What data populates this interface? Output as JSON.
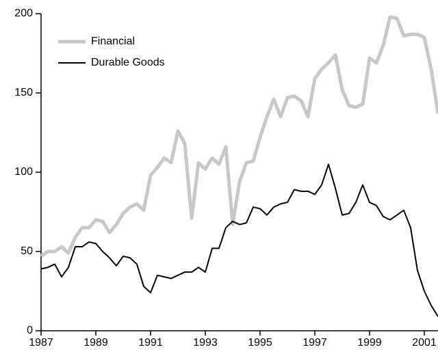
{
  "chart_data": {
    "type": "line",
    "x": [
      1987,
      1987.25,
      1987.5,
      1987.75,
      1988,
      1988.25,
      1988.5,
      1988.75,
      1989,
      1989.25,
      1989.5,
      1989.75,
      1990,
      1990.25,
      1990.5,
      1990.75,
      1991,
      1991.25,
      1991.5,
      1991.75,
      1992,
      1992.25,
      1992.5,
      1992.75,
      1993,
      1993.25,
      1993.5,
      1993.75,
      1994,
      1994.25,
      1994.5,
      1994.75,
      1995,
      1995.25,
      1995.5,
      1995.75,
      1996,
      1996.25,
      1996.5,
      1996.75,
      1997,
      1997.25,
      1997.5,
      1997.75,
      1998,
      1998.25,
      1998.5,
      1998.75,
      1999,
      1999.25,
      1999.5,
      1999.75,
      2000,
      2000.25,
      2000.5,
      2000.75,
      2001,
      2001.25,
      2001.5
    ],
    "series": [
      {
        "name": "Financial",
        "color": "#c8c8c8",
        "values": [
          47,
          50,
          50,
          53,
          49,
          59,
          65,
          65,
          70,
          69,
          62,
          67,
          74,
          78,
          80,
          76,
          98,
          103,
          109,
          106,
          126,
          118,
          71,
          106,
          102,
          109,
          105,
          116,
          67,
          94,
          106,
          107,
          122,
          135,
          146,
          135,
          147,
          148,
          145,
          135,
          159,
          165,
          169,
          174,
          152,
          142,
          141,
          143,
          172,
          169,
          180,
          198,
          197,
          186,
          187,
          187,
          185,
          165,
          137
        ]
      },
      {
        "name": "Durable Goods",
        "color": "#000000",
        "values": [
          39,
          40,
          42,
          34,
          40,
          53,
          53,
          56,
          55,
          50,
          46,
          41,
          47,
          46,
          42,
          28,
          24,
          35,
          34,
          33,
          35,
          37,
          37,
          40,
          37,
          52,
          52,
          65,
          69,
          67,
          68,
          78,
          77,
          73,
          78,
          80,
          81,
          89,
          88,
          88,
          86,
          92,
          105,
          90,
          73,
          74,
          81,
          92,
          81,
          79,
          72,
          70,
          73,
          76,
          65,
          38,
          25,
          16,
          9
        ]
      }
    ],
    "xlim": [
      1987,
      2001.5
    ],
    "xticks": [
      1987,
      1989,
      1991,
      1993,
      1995,
      1997,
      1999,
      2001
    ],
    "ylim": [
      0,
      200
    ],
    "yticks": [
      0,
      50,
      100,
      150,
      200
    ],
    "legend": "upper left"
  }
}
